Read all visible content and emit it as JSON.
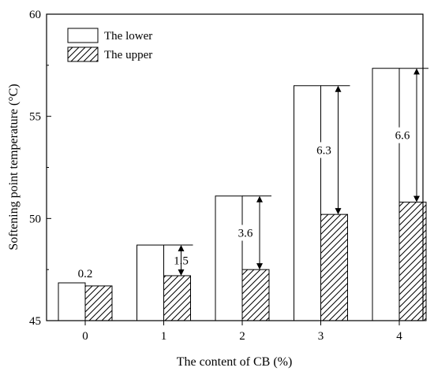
{
  "chart_data": {
    "type": "bar",
    "xlabel": "The content of CB (%)",
    "ylabel": "Softening point temperature (°C)",
    "categories": [
      "0",
      "1",
      "2",
      "3",
      "4"
    ],
    "ylim": [
      45,
      60
    ],
    "yticks": [
      "45",
      "50",
      "55",
      "60"
    ],
    "series": [
      {
        "name": "The lower",
        "pattern": "none",
        "values": [
          46.85,
          48.7,
          51.1,
          56.5,
          57.35
        ]
      },
      {
        "name": "The upper",
        "pattern": "hatch",
        "values": [
          46.7,
          47.2,
          47.5,
          50.2,
          50.8
        ]
      }
    ],
    "differences": [
      "0.2",
      "1.5",
      "3.6",
      "6.3",
      "6.6"
    ],
    "legend_position": "top-left",
    "grid": false
  }
}
